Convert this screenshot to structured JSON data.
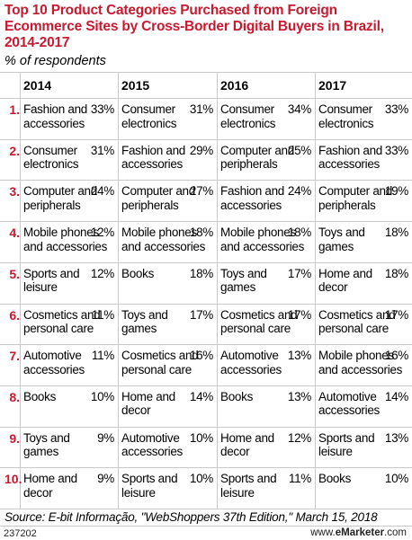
{
  "header": {
    "title": "Top 10 Product Categories Purchased from Foreign Ecommerce Sites by Cross-Border Digital Buyers in Brazil, 2014-2017",
    "subtitle": "% of respondents"
  },
  "chart_data": {
    "type": "table",
    "title": "Top 10 Product Categories Purchased from Foreign Ecommerce Sites by Cross-Border Digital Buyers in Brazil, 2014-2017",
    "subtitle": "% of respondents",
    "years": [
      "2014",
      "2015",
      "2016",
      "2017"
    ],
    "ranks": [
      "1.",
      "2.",
      "3.",
      "4.",
      "5.",
      "6.",
      "7.",
      "8.",
      "9.",
      "10."
    ],
    "columns": [
      {
        "year": "2014",
        "entries": [
          {
            "category": "Fashion and accessories",
            "value": "33%"
          },
          {
            "category": "Consumer electronics",
            "value": "31%"
          },
          {
            "category": "Computer and peripherals",
            "value": "24%"
          },
          {
            "category": "Mobile phones and accessories",
            "value": "12%"
          },
          {
            "category": "Sports and leisure",
            "value": "12%"
          },
          {
            "category": "Cosmetics and personal care",
            "value": "11%"
          },
          {
            "category": "Automotive accessories",
            "value": "11%"
          },
          {
            "category": "Books",
            "value": "10%"
          },
          {
            "category": "Toys and games",
            "value": "9%"
          },
          {
            "category": "Home and decor",
            "value": "9%"
          }
        ]
      },
      {
        "year": "2015",
        "entries": [
          {
            "category": "Consumer electronics",
            "value": "31%"
          },
          {
            "category": "Fashion and accessories",
            "value": "29%"
          },
          {
            "category": "Computer and peripherals",
            "value": "27%"
          },
          {
            "category": "Mobile phones and accessories",
            "value": "18%"
          },
          {
            "category": "Books",
            "value": "18%"
          },
          {
            "category": "Toys and games",
            "value": "17%"
          },
          {
            "category": "Cosmetics and personal care",
            "value": "16%"
          },
          {
            "category": "Home and decor",
            "value": "14%"
          },
          {
            "category": "Automotive accessories",
            "value": "10%"
          },
          {
            "category": "Sports and leisure",
            "value": "10%"
          }
        ]
      },
      {
        "year": "2016",
        "entries": [
          {
            "category": "Consumer electronics",
            "value": "34%"
          },
          {
            "category": "Computer and peripherals",
            "value": "25%"
          },
          {
            "category": "Fashion and accessories",
            "value": "24%"
          },
          {
            "category": "Mobile phones and accessories",
            "value": "18%"
          },
          {
            "category": "Toys and games",
            "value": "17%"
          },
          {
            "category": "Cosmetics and personal care",
            "value": "17%"
          },
          {
            "category": "Automotive accessories",
            "value": "13%"
          },
          {
            "category": "Books",
            "value": "13%"
          },
          {
            "category": "Home and decor",
            "value": "12%"
          },
          {
            "category": "Sports and leisure",
            "value": "11%"
          }
        ]
      },
      {
        "year": "2017",
        "entries": [
          {
            "category": "Consumer electronics",
            "value": "33%"
          },
          {
            "category": "Fashion and accessories",
            "value": "33%"
          },
          {
            "category": "Computer and peripherals",
            "value": "19%"
          },
          {
            "category": "Toys and games",
            "value": "18%"
          },
          {
            "category": "Home and decor",
            "value": "18%"
          },
          {
            "category": "Cosmetics and personal care",
            "value": "17%"
          },
          {
            "category": "Mobile phones and accessories",
            "value": "16%"
          },
          {
            "category": "Automotive accessories",
            "value": "14%"
          },
          {
            "category": "Sports and leisure",
            "value": "13%"
          },
          {
            "category": "Books",
            "value": "10%"
          }
        ]
      }
    ]
  },
  "footer": {
    "source": "Source: E-bit Informação, \"WebShoppers 37th Edition,\" March 15, 2018",
    "chart_id": "237202",
    "brand_prefix": "www.",
    "brand_name": "eMarketer",
    "brand_suffix": ".com"
  }
}
